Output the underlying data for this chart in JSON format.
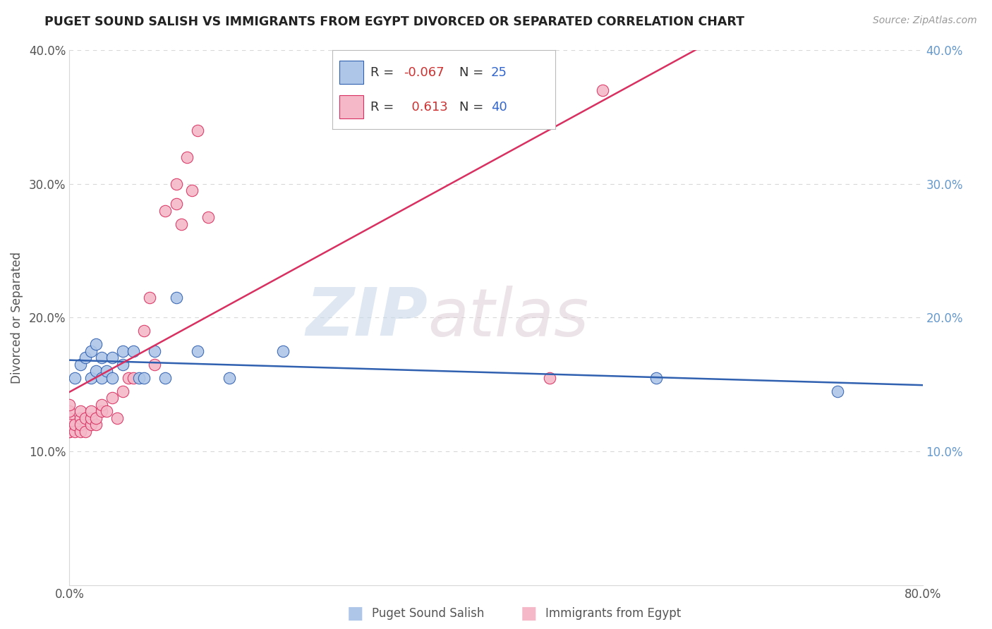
{
  "title": "PUGET SOUND SALISH VS IMMIGRANTS FROM EGYPT DIVORCED OR SEPARATED CORRELATION CHART",
  "source": "Source: ZipAtlas.com",
  "ylabel": "Divorced or Separated",
  "xlim": [
    0.0,
    0.8
  ],
  "ylim": [
    0.0,
    0.4
  ],
  "blue_R": -0.067,
  "blue_N": 25,
  "pink_R": 0.613,
  "pink_N": 40,
  "blue_scatter_x": [
    0.005,
    0.01,
    0.015,
    0.02,
    0.02,
    0.025,
    0.025,
    0.03,
    0.03,
    0.035,
    0.04,
    0.04,
    0.05,
    0.05,
    0.06,
    0.065,
    0.07,
    0.08,
    0.09,
    0.1,
    0.12,
    0.15,
    0.2,
    0.55,
    0.72
  ],
  "blue_scatter_y": [
    0.155,
    0.165,
    0.17,
    0.155,
    0.175,
    0.16,
    0.18,
    0.155,
    0.17,
    0.16,
    0.17,
    0.155,
    0.165,
    0.175,
    0.175,
    0.155,
    0.155,
    0.175,
    0.155,
    0.215,
    0.175,
    0.155,
    0.175,
    0.155,
    0.145
  ],
  "pink_scatter_x": [
    0.0,
    0.0,
    0.0,
    0.0,
    0.0,
    0.0,
    0.005,
    0.005,
    0.01,
    0.01,
    0.01,
    0.01,
    0.015,
    0.015,
    0.02,
    0.02,
    0.02,
    0.025,
    0.025,
    0.03,
    0.03,
    0.035,
    0.04,
    0.045,
    0.05,
    0.055,
    0.06,
    0.07,
    0.075,
    0.08,
    0.09,
    0.1,
    0.1,
    0.105,
    0.11,
    0.115,
    0.12,
    0.13,
    0.45,
    0.5
  ],
  "pink_scatter_y": [
    0.115,
    0.125,
    0.13,
    0.135,
    0.12,
    0.115,
    0.115,
    0.12,
    0.115,
    0.125,
    0.13,
    0.12,
    0.115,
    0.125,
    0.12,
    0.125,
    0.13,
    0.12,
    0.125,
    0.13,
    0.135,
    0.13,
    0.14,
    0.125,
    0.145,
    0.155,
    0.155,
    0.19,
    0.215,
    0.165,
    0.28,
    0.3,
    0.285,
    0.27,
    0.32,
    0.295,
    0.34,
    0.275,
    0.155,
    0.37
  ],
  "blue_color": "#aec6e8",
  "pink_color": "#f4b8c8",
  "blue_line_color": "#3060b0",
  "pink_line_color": "#d83060",
  "watermark_zip": "ZIP",
  "watermark_atlas": "atlas",
  "background_color": "#ffffff",
  "grid_color": "#d8d8d8",
  "right_tick_color": "#6699cc",
  "label_color": "#555555",
  "legend_R_color": "#cc3333",
  "legend_N_color": "#3366cc"
}
